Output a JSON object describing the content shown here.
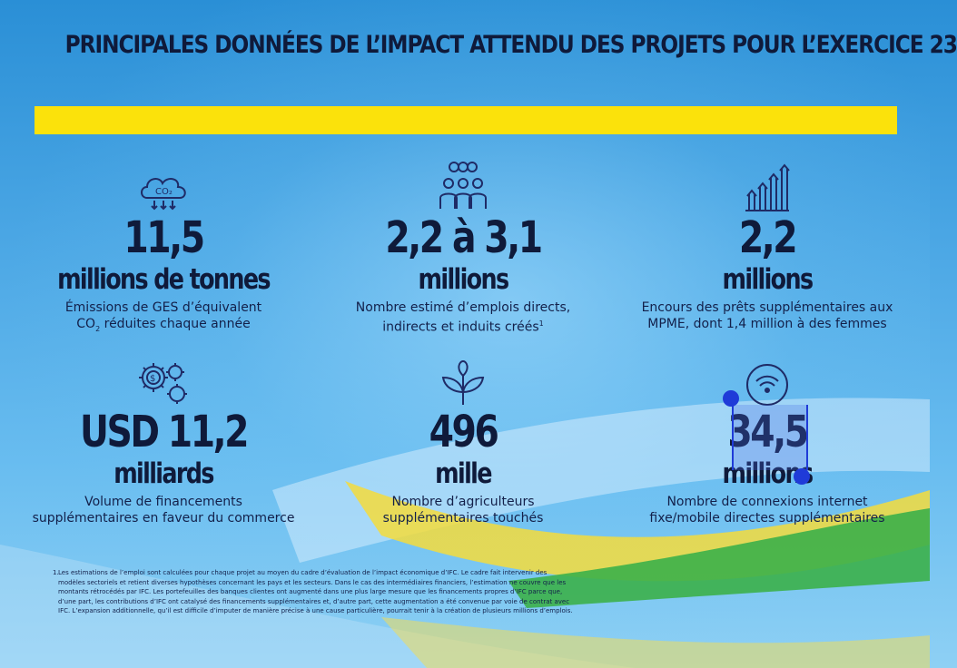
{
  "title": "PRINCIPALES DONNÉES DE L’IMPACT ATTENDU DES PROJETS POUR L’EXERCICE 23",
  "stats": [
    {
      "icon": "co2-cloud-icon",
      "number": "11,5",
      "unit": "millions de tonnes",
      "desc1": "Émissions de GES d’équivalent",
      "desc2_pre": "CO",
      "desc2_sub": "2",
      "desc2_post": " réduites chaque année"
    },
    {
      "icon": "people-group-icon",
      "number": "2,2 à 3,1",
      "unit": "millions",
      "desc1": "Nombre estimé d’emplois directs,",
      "desc2": "indirects et induits créés",
      "desc2_sup": "1"
    },
    {
      "icon": "growth-chart-icon",
      "number": "2,2",
      "unit": "millions",
      "desc1": "Encours des prêts supplémentaires aux",
      "desc2": "MPME, dont 1,4 million à des femmes"
    },
    {
      "icon": "gears-dollar-icon",
      "number": "USD 11,2",
      "unit": "milliards",
      "desc1": "Volume de financements",
      "desc2": "supplémentaires en faveur du commerce"
    },
    {
      "icon": "plant-sprout-icon",
      "number": "496",
      "unit": "mille",
      "desc1": "Nombre d’agriculteurs",
      "desc2": "supplémentaires touchés"
    },
    {
      "icon": "wifi-icon",
      "number": "34,5",
      "unit": "millions",
      "desc1": "Nombre de connexions internet",
      "desc2": "fixe/mobile directes supplémentaires"
    }
  ],
  "co2_label": "CO₂",
  "footnote": {
    "num": "1.",
    "lines": [
      "Les estimations de l’emploi sont calculées pour chaque projet au moyen du cadre d’évaluation de l’impact économique d’IFC. Le cadre fait intervenir des",
      "modèles sectoriels et retient diverses hypothèses concernant les pays et les secteurs. Dans le cas des intermédiaires financiers, l’estimation ne couvre que les",
      "montants rétrocédés par IFC. Les portefeuilles des banques clientes ont augmenté dans une plus large mesure que les financements propres d’IFC parce que,",
      "d’une part, les contributions d’IFC ont catalysé des financements supplémentaires et, d’autre part, cette augmentation a été convenue par voie de contrat avec",
      "IFC. L’expansion additionnelle, qu’il est difficile d’imputer de manière précise à une cause particulière, pourrait tenir à la création de plusieurs millions d’emplois."
    ]
  },
  "colors": {
    "yellow": "#fbe20b",
    "navy": "#0f1a3a",
    "selection": "#1f3bd8",
    "wave_green": "#3fb04a"
  }
}
